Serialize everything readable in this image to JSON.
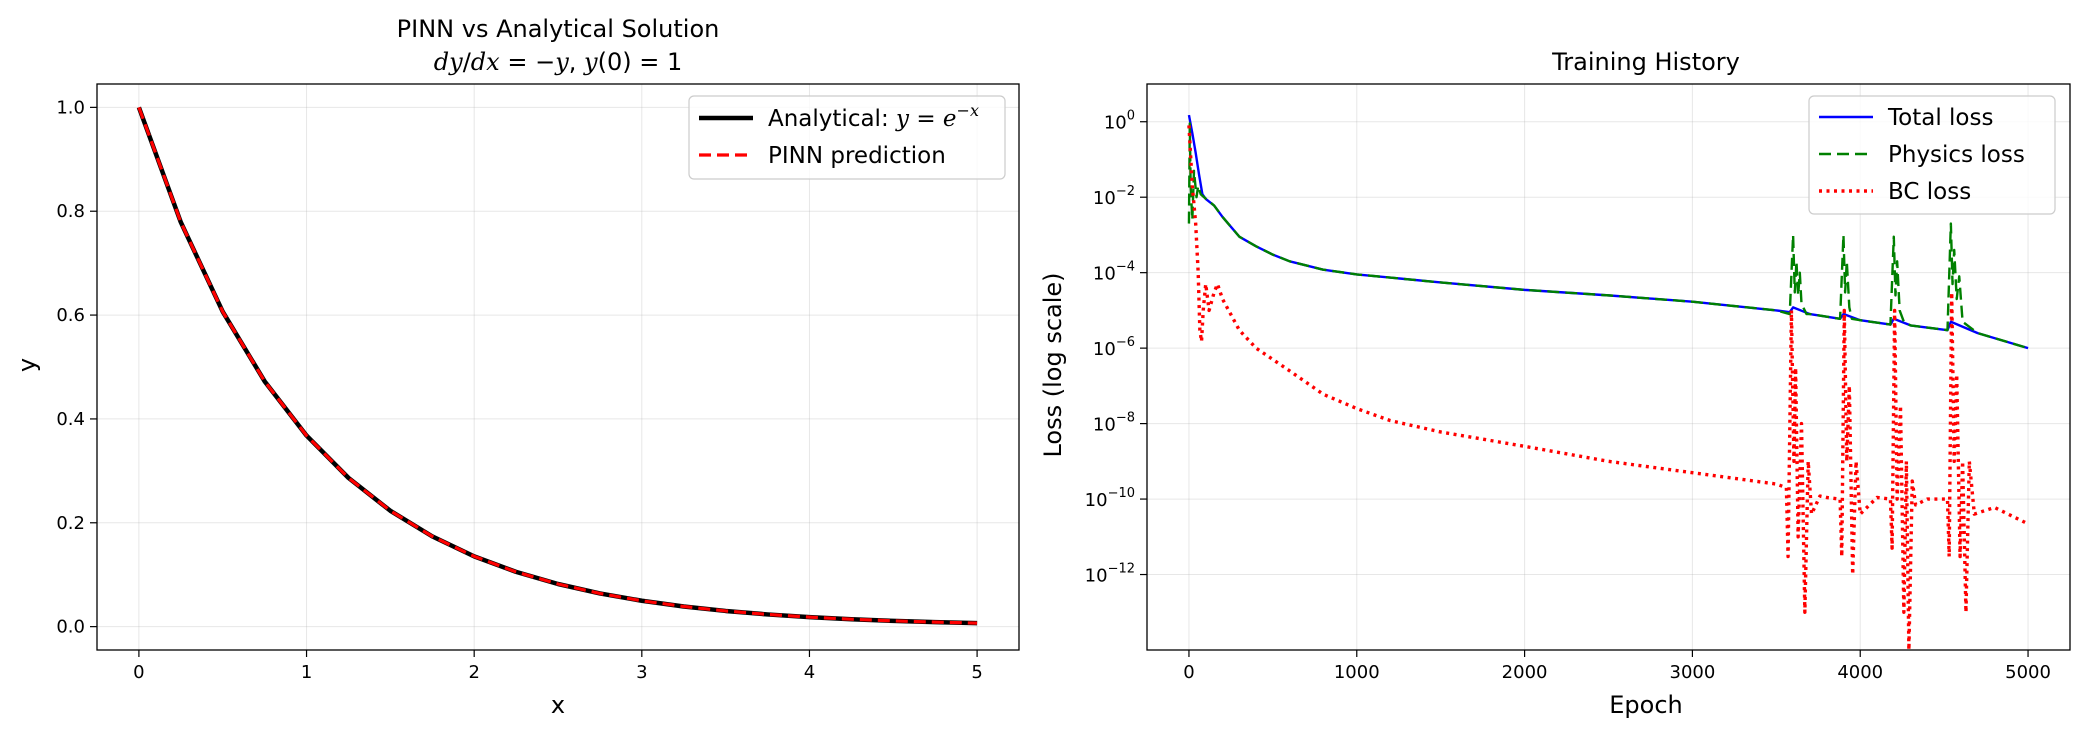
{
  "chart_data": [
    {
      "type": "line",
      "title": "PINN vs Analytical Solution",
      "subtitle": "dy/dx = −y,  y(0) = 1",
      "subtitle_parts": {
        "a": "dy",
        "b": "/",
        "c": "dx",
        "d": " = −",
        "e": "y",
        "f": ",  ",
        "g": "y",
        "h": "(0) = 1"
      },
      "xlabel": "x",
      "ylabel": "y",
      "xlim": [
        -0.25,
        5.25
      ],
      "ylim": [
        -0.045,
        1.045
      ],
      "xticks": [
        0,
        1,
        2,
        3,
        4,
        5
      ],
      "xtick_labels": [
        "0",
        "1",
        "2",
        "3",
        "4",
        "5"
      ],
      "yticks": [
        0.0,
        0.2,
        0.4,
        0.6,
        0.8,
        1.0
      ],
      "ytick_labels": [
        "0.0",
        "0.2",
        "0.4",
        "0.6",
        "0.8",
        "1.0"
      ],
      "grid": true,
      "legend_position": "upper right",
      "x": [
        0,
        0.25,
        0.5,
        0.75,
        1,
        1.25,
        1.5,
        1.75,
        2,
        2.25,
        2.5,
        2.75,
        3,
        3.25,
        3.5,
        3.75,
        4,
        4.25,
        4.5,
        4.75,
        5
      ],
      "series": [
        {
          "name": "Analytical: y = e^(−x)",
          "legend_parts": {
            "a": "Analytical: ",
            "b": "y",
            "c": " = ",
            "d": "e",
            "e": "−x"
          },
          "color": "#000000",
          "style": "solid",
          "values": [
            1.0,
            0.7788,
            0.6065,
            0.4724,
            0.3679,
            0.2865,
            0.2231,
            0.1738,
            0.1353,
            0.1054,
            0.0821,
            0.0639,
            0.0498,
            0.0388,
            0.0302,
            0.0235,
            0.0183,
            0.0143,
            0.0111,
            0.0087,
            0.0067
          ]
        },
        {
          "name": "PINN prediction",
          "color": "#ff0000",
          "style": "dashed",
          "values": [
            1.0,
            0.7788,
            0.6065,
            0.4724,
            0.3679,
            0.2865,
            0.2231,
            0.1738,
            0.1353,
            0.1054,
            0.0821,
            0.0639,
            0.0498,
            0.0388,
            0.0302,
            0.0235,
            0.0183,
            0.0143,
            0.0111,
            0.0087,
            0.0067
          ]
        }
      ]
    },
    {
      "type": "line",
      "title": "Training History",
      "xlabel": "Epoch",
      "ylabel": "Loss (log scale)",
      "yscale": "log",
      "xlim": [
        -250,
        5250
      ],
      "ylim_log10": [
        -14,
        1
      ],
      "xticks": [
        0,
        1000,
        2000,
        3000,
        4000,
        5000
      ],
      "xtick_labels": [
        "0",
        "1000",
        "2000",
        "3000",
        "4000",
        "5000"
      ],
      "ytick_exponents": [
        0,
        -2,
        -4,
        -6,
        -8,
        -10,
        -12
      ],
      "ytick_labels": [
        "−12",
        "−10",
        "−8",
        "−6",
        "−4",
        "−2",
        "0"
      ],
      "ytick_base": "10",
      "grid": true,
      "legend_position": "upper right",
      "series": [
        {
          "name": "Total loss",
          "color": "#0000ff",
          "style": "solid",
          "points": [
            [
              0,
              1.5
            ],
            [
              20,
              0.5
            ],
            [
              40,
              0.15
            ],
            [
              60,
              0.04
            ],
            [
              80,
              0.012
            ],
            [
              100,
              0.009
            ],
            [
              150,
              0.006
            ],
            [
              200,
              0.003
            ],
            [
              300,
              0.0009
            ],
            [
              400,
              0.0005
            ],
            [
              500,
              0.0003
            ],
            [
              600,
              0.0002
            ],
            [
              800,
              0.00012
            ],
            [
              1000,
              9e-05
            ],
            [
              1500,
              5.5e-05
            ],
            [
              2000,
              3.5e-05
            ],
            [
              2500,
              2.5e-05
            ],
            [
              3000,
              1.7e-05
            ],
            [
              3500,
              1e-05
            ],
            [
              3580,
              9e-06
            ],
            [
              3600,
              1.2e-05
            ],
            [
              3700,
              8e-06
            ],
            [
              3880,
              6e-06
            ],
            [
              3900,
              8e-06
            ],
            [
              4000,
              5.5e-06
            ],
            [
              4180,
              4.2e-06
            ],
            [
              4200,
              6e-06
            ],
            [
              4300,
              4e-06
            ],
            [
              4520,
              3e-06
            ],
            [
              4540,
              5e-06
            ],
            [
              4700,
              2.5e-06
            ],
            [
              5000,
              1e-06
            ]
          ]
        },
        {
          "name": "Physics loss",
          "color": "#008000",
          "style": "dashed",
          "points": [
            [
              0,
              0.002
            ],
            [
              5,
              0.9
            ],
            [
              10,
              0.02
            ],
            [
              20,
              0.0025
            ],
            [
              30,
              0.05
            ],
            [
              45,
              0.01
            ],
            [
              55,
              0.02
            ],
            [
              70,
              0.012
            ],
            [
              90,
              0.01
            ],
            [
              150,
              0.006
            ],
            [
              200,
              0.003
            ],
            [
              300,
              0.0009
            ],
            [
              400,
              0.0005
            ],
            [
              500,
              0.0003
            ],
            [
              600,
              0.0002
            ],
            [
              800,
              0.00012
            ],
            [
              1000,
              9e-05
            ],
            [
              1500,
              5.5e-05
            ],
            [
              2000,
              3.5e-05
            ],
            [
              2500,
              2.5e-05
            ],
            [
              3000,
              1.7e-05
            ],
            [
              3500,
              1e-05
            ],
            [
              3580,
              8e-06
            ],
            [
              3600,
              0.001
            ],
            [
              3610,
              3e-05
            ],
            [
              3620,
              0.0002
            ],
            [
              3630,
              2.5e-05
            ],
            [
              3640,
              0.0001
            ],
            [
              3650,
              1.5e-05
            ],
            [
              3680,
              8e-06
            ],
            [
              3700,
              8e-06
            ],
            [
              3880,
              6e-06
            ],
            [
              3900,
              0.001
            ],
            [
              3910,
              3e-05
            ],
            [
              3920,
              0.0002
            ],
            [
              3935,
              1.2e-05
            ],
            [
              3950,
              6e-06
            ],
            [
              4000,
              5.5e-06
            ],
            [
              4180,
              4.2e-06
            ],
            [
              4200,
              0.0009
            ],
            [
              4210,
              2.5e-05
            ],
            [
              4220,
              0.0002
            ],
            [
              4235,
              1e-05
            ],
            [
              4260,
              5e-06
            ],
            [
              4300,
              4e-06
            ],
            [
              4520,
              3e-06
            ],
            [
              4540,
              0.002
            ],
            [
              4550,
              5e-05
            ],
            [
              4560,
              0.0004
            ],
            [
              4575,
              2e-05
            ],
            [
              4590,
              8e-05
            ],
            [
              4610,
              5e-06
            ],
            [
              4700,
              2.5e-06
            ],
            [
              5000,
              1e-06
            ]
          ]
        },
        {
          "name": "BC loss",
          "color": "#ff0000",
          "style": "dotted",
          "points": [
            [
              0,
              0.8
            ],
            [
              20,
              0.02
            ],
            [
              40,
              0.002
            ],
            [
              55,
              0.0001
            ],
            [
              65,
              3e-06
            ],
            [
              75,
              1.5e-06
            ],
            [
              85,
              1e-05
            ],
            [
              100,
              5e-05
            ],
            [
              120,
              1e-05
            ],
            [
              150,
              3e-05
            ],
            [
              170,
              5e-05
            ],
            [
              200,
              2e-05
            ],
            [
              300,
              3e-06
            ],
            [
              400,
              1e-06
            ],
            [
              500,
              5e-07
            ],
            [
              600,
              2.5e-07
            ],
            [
              800,
              6e-08
            ],
            [
              1000,
              2.5e-08
            ],
            [
              1200,
              1.2e-08
            ],
            [
              1500,
              6e-09
            ],
            [
              2000,
              2.5e-09
            ],
            [
              2500,
              1e-09
            ],
            [
              3000,
              5e-10
            ],
            [
              3500,
              2.5e-10
            ],
            [
              3560,
              2e-10
            ],
            [
              3570,
              3e-12
            ],
            [
              3590,
              1e-05
            ],
            [
              3605,
              1e-09
            ],
            [
              3615,
              3e-07
            ],
            [
              3630,
              1e-11
            ],
            [
              3650,
              1e-08
            ],
            [
              3670,
              1e-13
            ],
            [
              3690,
              1e-09
            ],
            [
              3710,
              4e-11
            ],
            [
              3760,
              1.2e-10
            ],
            [
              3800,
              1.1e-10
            ],
            [
              3880,
              1e-10
            ],
            [
              3890,
              3e-12
            ],
            [
              3905,
              1e-05
            ],
            [
              3920,
              1e-09
            ],
            [
              3935,
              1e-07
            ],
            [
              3955,
              1e-12
            ],
            [
              3975,
              1e-09
            ],
            [
              4000,
              4e-11
            ],
            [
              4100,
              1.1e-10
            ],
            [
              4180,
              1e-10
            ],
            [
              4190,
              5e-12
            ],
            [
              4205,
              1e-05
            ],
            [
              4220,
              1e-10
            ],
            [
              4240,
              3e-08
            ],
            [
              4260,
              1e-13
            ],
            [
              4275,
              1e-09
            ],
            [
              4290,
              1e-14
            ],
            [
              4310,
              3e-10
            ],
            [
              4330,
              7e-11
            ],
            [
              4400,
              1e-10
            ],
            [
              4520,
              1e-10
            ],
            [
              4530,
              3e-12
            ],
            [
              4545,
              3e-05
            ],
            [
              4560,
              1e-09
            ],
            [
              4575,
              2e-07
            ],
            [
              4595,
              3e-12
            ],
            [
              4610,
              1e-09
            ],
            [
              4630,
              1e-13
            ],
            [
              4650,
              1e-09
            ],
            [
              4680,
              4e-11
            ],
            [
              4800,
              6e-11
            ],
            [
              5000,
              2.2e-11
            ]
          ]
        }
      ]
    }
  ]
}
